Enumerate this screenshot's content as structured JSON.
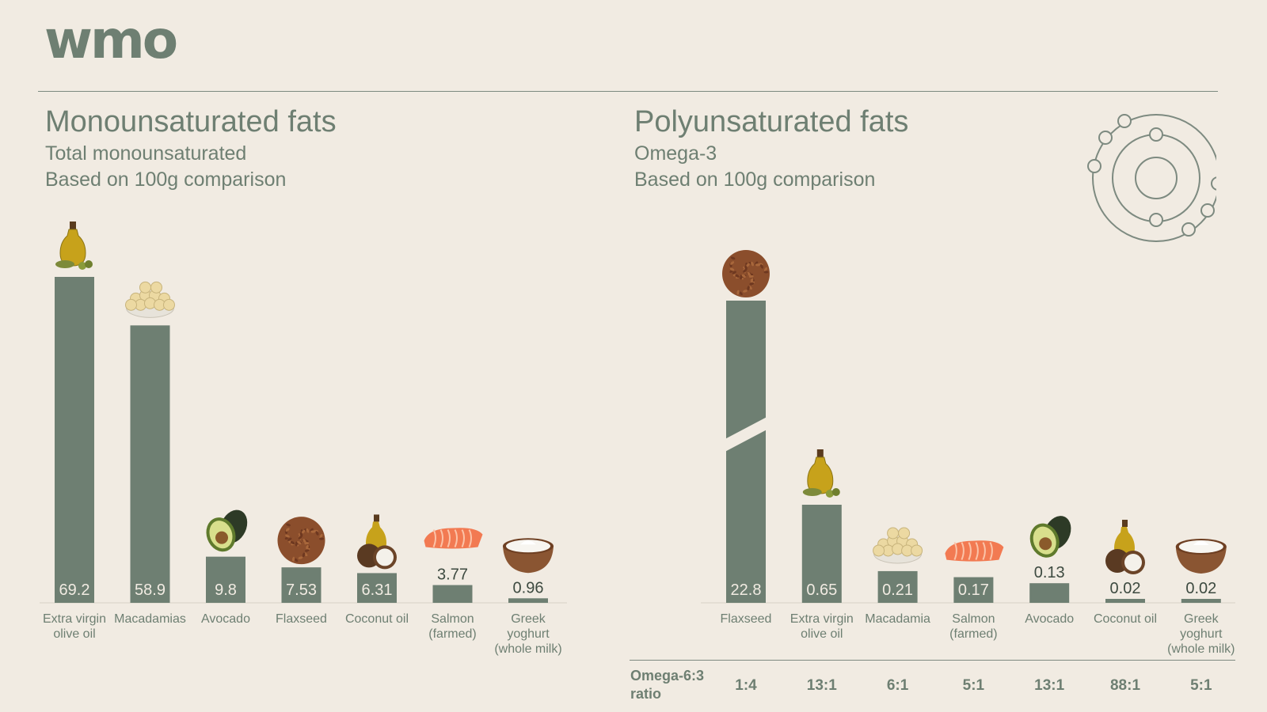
{
  "brand": {
    "logo_text": "wmo"
  },
  "chart_data": [
    {
      "type": "bar",
      "title": "Monounsaturated fats",
      "subtitle": [
        "Total monounsaturated",
        "Based on 100g comparison"
      ],
      "categories": [
        "Extra virgin olive oil",
        "Macadamias",
        "Avocado",
        "Flaxseed",
        "Coconut oil",
        "Salmon (farmed)",
        "Greek yoghurt (whole milk)"
      ],
      "category_lines": [
        [
          "Extra virgin",
          "olive oil"
        ],
        [
          "Macadamias"
        ],
        [
          "Avocado"
        ],
        [
          "Flaxseed"
        ],
        [
          "Coconut oil"
        ],
        [
          "Salmon",
          "(farmed)"
        ],
        [
          "Greek",
          "yoghurt",
          "(whole milk)"
        ]
      ],
      "values": [
        69.2,
        58.9,
        9.8,
        7.53,
        6.31,
        3.77,
        0.96
      ],
      "value_labels": [
        "69.2",
        "58.9",
        "9.8",
        "7.53",
        "6.31",
        "3.77",
        "0.96"
      ],
      "icons": [
        "olive-oil-icon",
        "macadamia-icon",
        "avocado-icon",
        "flaxseed-icon",
        "coconut-oil-icon",
        "salmon-icon",
        "yoghurt-icon"
      ],
      "ylim": [
        0,
        69.2
      ],
      "grid": false,
      "bar_color": "#6e7f72"
    },
    {
      "type": "bar",
      "title": "Polyunsaturated fats",
      "subtitle": [
        "Omega-3",
        "Based on 100g comparison"
      ],
      "categories": [
        "Flaxseed",
        "Extra virgin olive oil",
        "Macadamia",
        "Salmon (farmed)",
        "Avocado",
        "Coconut oil",
        "Greek yoghurt (whole milk)"
      ],
      "category_lines": [
        [
          "Flaxseed"
        ],
        [
          "Extra virgin",
          "olive oil"
        ],
        [
          "Macadamia"
        ],
        [
          "Salmon",
          "(farmed)"
        ],
        [
          "Avocado"
        ],
        [
          "Coconut oil"
        ],
        [
          "Greek",
          "yoghurt",
          "(whole milk)"
        ]
      ],
      "values": [
        22.8,
        0.65,
        0.21,
        0.17,
        0.13,
        0.02,
        0.02
      ],
      "value_labels": [
        "22.8",
        "0.65",
        "0.21",
        "0.17",
        "0.13",
        "0.02",
        "0.02"
      ],
      "icons": [
        "flaxseed-icon",
        "olive-oil-icon",
        "macadamia-icon",
        "salmon-icon",
        "avocado-icon",
        "coconut-oil-icon",
        "yoghurt-icon"
      ],
      "axis_break": true,
      "grid": false,
      "bar_color": "#6e7f72"
    }
  ],
  "ratio_table": {
    "label": [
      "Omega-6:3",
      "ratio"
    ],
    "values": [
      "1:4",
      "13:1",
      "6:1",
      "5:1",
      "13:1",
      "88:1",
      "5:1"
    ]
  }
}
